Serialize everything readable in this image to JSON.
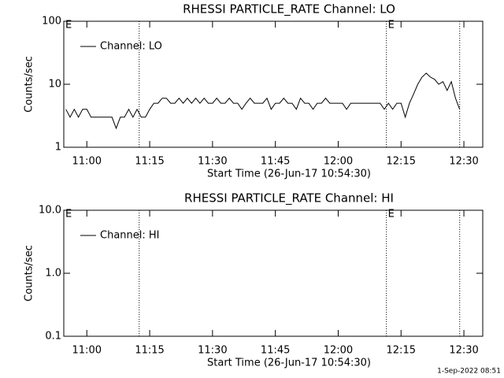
{
  "chart_data": [
    {
      "type": "line",
      "title": "RHESSI PARTICLE_RATE Channel: LO",
      "xlabel": "Start Time (26-Jun-17 10:54:30)",
      "ylabel": "Counts/sec",
      "log_y": true,
      "xlim": [
        "10:54:30",
        "12:34:30"
      ],
      "ylim": [
        1,
        100
      ],
      "yticks": [
        1,
        10,
        100
      ],
      "xticks": [
        "11:00",
        "11:15",
        "11:30",
        "11:45",
        "12:00",
        "12:15",
        "12:30"
      ],
      "vlines": [
        "11:12:30",
        "12:11:30",
        "12:29:00"
      ],
      "annotations": [
        {
          "text": "E",
          "x": "10:54:30"
        },
        {
          "text": "E",
          "x": "12:11:30"
        }
      ],
      "x": [
        "10:55",
        "10:56",
        "10:57",
        "10:58",
        "10:59",
        "11:00",
        "11:01",
        "11:02",
        "11:03",
        "11:04",
        "11:05",
        "11:06",
        "11:07",
        "11:08",
        "11:09",
        "11:10",
        "11:11",
        "11:12",
        "11:13",
        "11:14",
        "11:15",
        "11:16",
        "11:17",
        "11:18",
        "11:19",
        "11:20",
        "11:21",
        "11:22",
        "11:23",
        "11:24",
        "11:25",
        "11:26",
        "11:27",
        "11:28",
        "11:29",
        "11:30",
        "11:31",
        "11:32",
        "11:33",
        "11:34",
        "11:35",
        "11:36",
        "11:37",
        "11:38",
        "11:39",
        "11:40",
        "11:41",
        "11:42",
        "11:43",
        "11:44",
        "11:45",
        "11:46",
        "11:47",
        "11:48",
        "11:49",
        "11:50",
        "11:51",
        "11:52",
        "11:53",
        "11:54",
        "11:55",
        "11:56",
        "11:57",
        "11:58",
        "11:59",
        "12:00",
        "12:01",
        "12:02",
        "12:03",
        "12:04",
        "12:05",
        "12:06",
        "12:07",
        "12:08",
        "12:09",
        "12:10",
        "12:11",
        "12:12",
        "12:13",
        "12:14",
        "12:15",
        "12:16",
        "12:17",
        "12:18",
        "12:19",
        "12:20",
        "12:21",
        "12:22",
        "12:23",
        "12:24",
        "12:25",
        "12:26",
        "12:27",
        "12:28",
        "12:29"
      ],
      "series": [
        {
          "name": "Channel: LO",
          "color": "#000000",
          "values": [
            4,
            3,
            4,
            3,
            4,
            4,
            3,
            3,
            3,
            3,
            3,
            3,
            2,
            3,
            3,
            4,
            3,
            4,
            3,
            3,
            4,
            5,
            5,
            6,
            6,
            5,
            5,
            6,
            5,
            6,
            5,
            6,
            5,
            6,
            5,
            5,
            6,
            5,
            5,
            6,
            5,
            5,
            4,
            5,
            6,
            5,
            5,
            5,
            6,
            4,
            5,
            5,
            6,
            5,
            5,
            4,
            6,
            5,
            5,
            4,
            5,
            5,
            6,
            5,
            5,
            5,
            5,
            4,
            5,
            5,
            5,
            5,
            5,
            5,
            5,
            5,
            4,
            5,
            4,
            5,
            5,
            3,
            5,
            7,
            10,
            13,
            15,
            13,
            12,
            10,
            11,
            8,
            11,
            6,
            4
          ]
        }
      ]
    },
    {
      "type": "line",
      "title": "RHESSI PARTICLE_RATE Channel: HI",
      "xlabel": "Start Time (26-Jun-17 10:54:30)",
      "ylabel": "Counts/sec",
      "log_y": true,
      "xlim": [
        "10:54:30",
        "12:34:30"
      ],
      "ylim": [
        0.1,
        10
      ],
      "yticks": [
        0.1,
        {
          "value": 1,
          "label": "1.0"
        },
        {
          "value": 10,
          "label": "10.0"
        }
      ],
      "xticks": [
        "11:00",
        "11:15",
        "11:30",
        "11:45",
        "12:00",
        "12:15",
        "12:30"
      ],
      "vlines": [
        "11:12:30",
        "12:11:30",
        "12:29:00"
      ],
      "annotations": [
        {
          "text": "E",
          "x": "10:54:30"
        },
        {
          "text": "E",
          "x": "12:11:30"
        }
      ],
      "x": [],
      "series": [
        {
          "name": "Channel: HI",
          "color": "#000000",
          "values": []
        }
      ]
    }
  ],
  "footer": "1-Sep-2022 08:51"
}
